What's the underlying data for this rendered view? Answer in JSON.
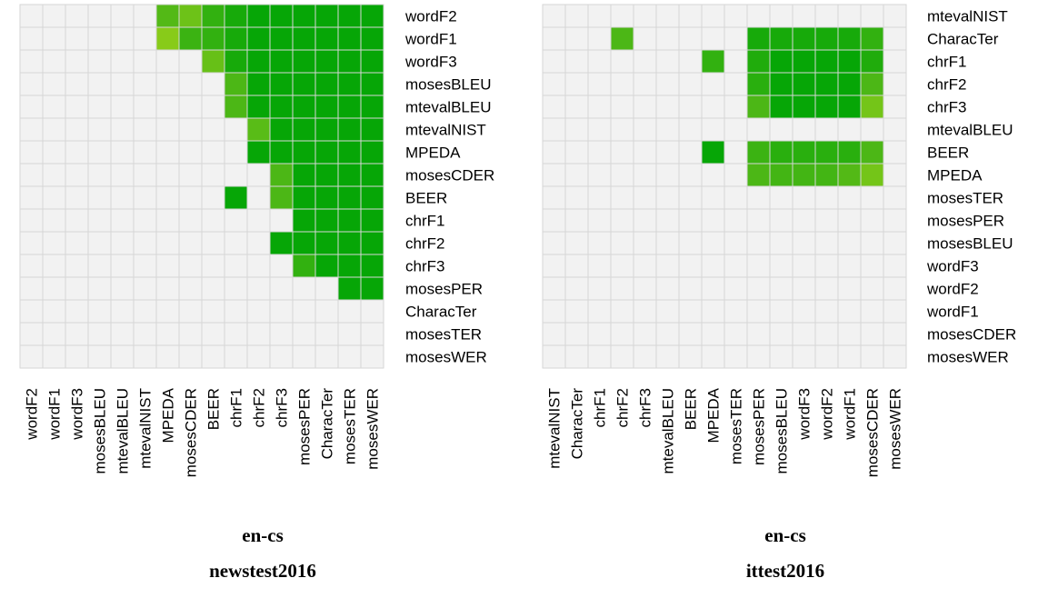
{
  "colors": {
    "background_cell": "#f2f2f2",
    "grid_line": "#d6d6d6",
    "scale_low": "#9cd21a",
    "scale_mid": "#4cb716",
    "scale_high": "#06a606"
  },
  "chart_data": [
    {
      "type": "heatmap",
      "title_lines": [
        "en-cs",
        "newstest2016"
      ],
      "rows": [
        "wordF2",
        "wordF1",
        "wordF3",
        "mosesBLEU",
        "mtevalBLEU",
        "mtevalNIST",
        "MPEDA",
        "mosesCDER",
        "BEER",
        "chrF1",
        "chrF2",
        "chrF3",
        "mosesPER",
        "CharacTer",
        "mosesTER",
        "mosesWER"
      ],
      "columns": [
        "wordF2",
        "wordF1",
        "wordF3",
        "mosesBLEU",
        "mtevalBLEU",
        "mtevalNIST",
        "MPEDA",
        "mosesCDER",
        "BEER",
        "chrF1",
        "chrF2",
        "chrF3",
        "mosesPER",
        "CharacTer",
        "mosesTER",
        "mosesWER"
      ],
      "value_range": [
        0,
        1
      ],
      "grid": true,
      "values": [
        [
          0,
          0,
          0,
          0,
          0,
          0,
          0.55,
          0.35,
          0.75,
          0.9,
          1,
          1,
          1,
          1,
          1,
          1
        ],
        [
          0,
          0,
          0,
          0,
          0,
          0,
          0.15,
          0.7,
          0.75,
          0.9,
          1,
          1,
          1,
          1,
          1,
          1
        ],
        [
          0,
          0,
          0,
          0,
          0,
          0,
          0,
          0,
          0.4,
          0.9,
          1,
          1,
          1,
          1,
          1,
          1
        ],
        [
          0,
          0,
          0,
          0,
          0,
          0,
          0,
          0,
          0,
          0.6,
          1,
          1,
          1,
          1,
          1,
          1
        ],
        [
          0,
          0,
          0,
          0,
          0,
          0,
          0,
          0,
          0,
          0.6,
          1,
          1,
          1,
          1,
          1,
          1
        ],
        [
          0,
          0,
          0,
          0,
          0,
          0,
          0,
          0,
          0,
          0,
          0.5,
          1,
          1,
          1,
          1,
          1
        ],
        [
          0,
          0,
          0,
          0,
          0,
          0,
          0,
          0,
          0,
          0,
          1,
          1,
          1,
          1,
          1,
          1
        ],
        [
          0,
          0,
          0,
          0,
          0,
          0,
          0,
          0,
          0,
          0,
          0,
          0.6,
          1,
          1,
          1,
          1
        ],
        [
          0,
          0,
          0,
          0,
          0,
          0,
          0,
          0,
          0,
          1,
          0,
          0.6,
          1,
          1,
          1,
          1
        ],
        [
          0,
          0,
          0,
          0,
          0,
          0,
          0,
          0,
          0,
          0,
          0,
          0,
          1,
          1,
          1,
          1
        ],
        [
          0,
          0,
          0,
          0,
          0,
          0,
          0,
          0,
          0,
          0,
          0,
          1,
          1,
          1,
          1,
          1
        ],
        [
          0,
          0,
          0,
          0,
          0,
          0,
          0,
          0,
          0,
          0,
          0,
          0,
          0.75,
          1,
          1,
          1
        ],
        [
          0,
          0,
          0,
          0,
          0,
          0,
          0,
          0,
          0,
          0,
          0,
          0,
          0,
          0,
          1,
          1
        ],
        [
          0,
          0,
          0,
          0,
          0,
          0,
          0,
          0,
          0,
          0,
          0,
          0,
          0,
          0,
          0,
          0
        ],
        [
          0,
          0,
          0,
          0,
          0,
          0,
          0,
          0,
          0,
          0,
          0,
          0,
          0,
          0,
          0,
          0
        ],
        [
          0,
          0,
          0,
          0,
          0,
          0,
          0,
          0,
          0,
          0,
          0,
          0,
          0,
          0,
          0,
          0
        ]
      ]
    },
    {
      "type": "heatmap",
      "title_lines": [
        "en-cs",
        "ittest2016"
      ],
      "rows": [
        "mtevalNIST",
        "CharacTer",
        "chrF1",
        "chrF2",
        "chrF3",
        "mtevalBLEU",
        "BEER",
        "MPEDA",
        "mosesTER",
        "mosesPER",
        "mosesBLEU",
        "wordF3",
        "wordF2",
        "wordF1",
        "mosesCDER",
        "mosesWER"
      ],
      "columns": [
        "mtevalNIST",
        "CharacTer",
        "chrF1",
        "chrF2",
        "chrF3",
        "mtevalBLEU",
        "BEER",
        "MPEDA",
        "mosesTER",
        "mosesPER",
        "mosesBLEU",
        "wordF3",
        "wordF2",
        "wordF1",
        "mosesCDER",
        "mosesWER"
      ],
      "value_range": [
        0,
        1
      ],
      "grid": true,
      "values": [
        [
          0,
          0,
          0,
          0,
          0,
          0,
          0,
          0,
          0,
          0,
          0,
          0,
          0,
          0,
          0,
          0
        ],
        [
          0,
          0,
          0,
          0.6,
          0,
          0,
          0,
          0,
          0,
          0.9,
          0.9,
          0.9,
          0.9,
          0.9,
          0.75,
          0
        ],
        [
          0,
          0,
          0,
          0,
          0,
          0,
          0,
          0.75,
          0,
          0.85,
          1,
          1,
          1,
          1,
          0.85,
          0
        ],
        [
          0,
          0,
          0,
          0,
          0,
          0,
          0,
          0,
          0,
          0.8,
          1,
          1,
          1,
          1,
          0.6,
          0
        ],
        [
          0,
          0,
          0,
          0,
          0,
          0,
          0,
          0,
          0,
          0.6,
          1,
          1,
          1,
          1,
          0.3,
          0
        ],
        [
          0,
          0,
          0,
          0,
          0,
          0,
          0,
          0,
          0,
          0,
          0,
          0,
          0,
          0,
          0,
          0
        ],
        [
          0,
          0,
          0,
          0,
          0,
          0,
          0,
          1,
          0,
          0.7,
          0.8,
          0.8,
          0.8,
          0.8,
          0.6,
          0
        ],
        [
          0,
          0,
          0,
          0,
          0,
          0,
          0,
          0,
          0,
          0.6,
          0.65,
          0.65,
          0.65,
          0.55,
          0.3,
          0
        ],
        [
          0,
          0,
          0,
          0,
          0,
          0,
          0,
          0,
          0,
          0,
          0,
          0,
          0,
          0,
          0,
          0
        ],
        [
          0,
          0,
          0,
          0,
          0,
          0,
          0,
          0,
          0,
          0,
          0,
          0,
          0,
          0,
          0,
          0
        ],
        [
          0,
          0,
          0,
          0,
          0,
          0,
          0,
          0,
          0,
          0,
          0,
          0,
          0,
          0,
          0,
          0
        ],
        [
          0,
          0,
          0,
          0,
          0,
          0,
          0,
          0,
          0,
          0,
          0,
          0,
          0,
          0,
          0,
          0
        ],
        [
          0,
          0,
          0,
          0,
          0,
          0,
          0,
          0,
          0,
          0,
          0,
          0,
          0,
          0,
          0,
          0
        ],
        [
          0,
          0,
          0,
          0,
          0,
          0,
          0,
          0,
          0,
          0,
          0,
          0,
          0,
          0,
          0,
          0
        ],
        [
          0,
          0,
          0,
          0,
          0,
          0,
          0,
          0,
          0,
          0,
          0,
          0,
          0,
          0,
          0,
          0
        ],
        [
          0,
          0,
          0,
          0,
          0,
          0,
          0,
          0,
          0,
          0,
          0,
          0,
          0,
          0,
          0,
          0
        ]
      ]
    }
  ]
}
